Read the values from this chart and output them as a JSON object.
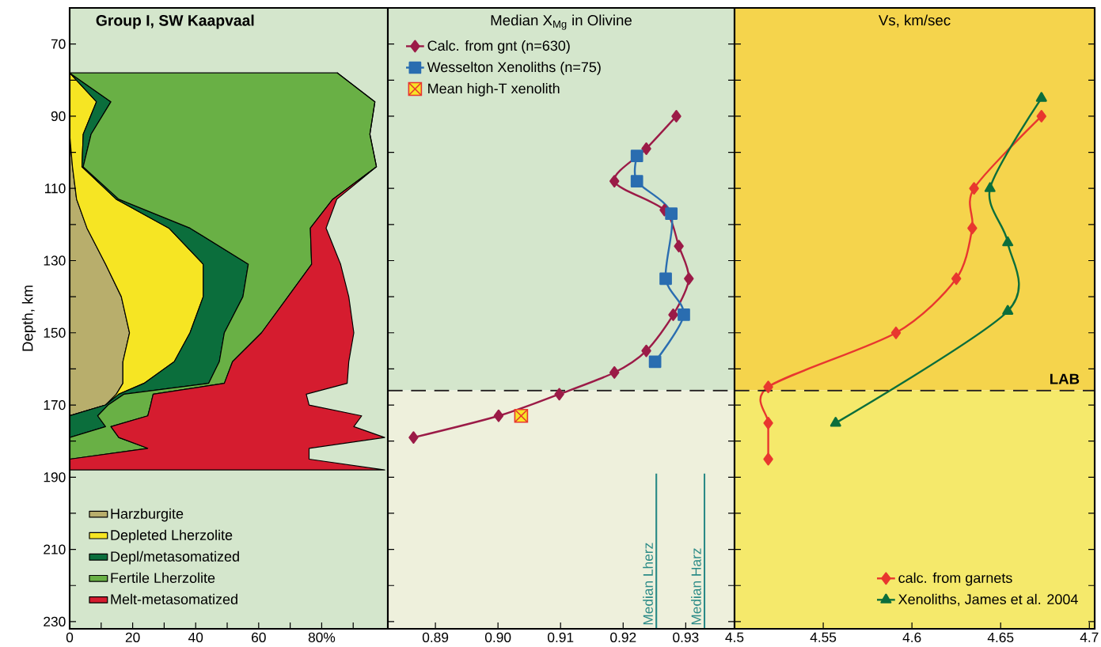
{
  "chart_data": [
    {
      "type": "area",
      "title": "Group I, SW Kaapvaal",
      "ylabel": "Depth, km",
      "orientation": "horizontal",
      "stacked": true,
      "legend": "bottom left",
      "x": [
        78,
        86,
        95,
        104,
        113,
        121,
        131,
        140,
        150,
        158,
        164,
        167,
        170,
        173,
        176,
        179,
        182,
        185,
        188
      ],
      "series": [
        {
          "name": "Harzburgite",
          "color": "#b8ae6c",
          "values": [
            0,
            0,
            0,
            0.9,
            2.2,
            5.5,
            11.4,
            16.4,
            19,
            16.9,
            16.9,
            14.8,
            11.4,
            0,
            0,
            0,
            0,
            0,
            0
          ]
        },
        {
          "name": "Depleted Lherzolite",
          "color": "#f6e523",
          "values": [
            0,
            8.5,
            4.3,
            3.0,
            12.6,
            26,
            31,
            26,
            19.2,
            16.3,
            6.7,
            0.8,
            0,
            0,
            0,
            0,
            0,
            0,
            0
          ]
        },
        {
          "name": "Depl/metasomatized",
          "color": "#0b6e3c",
          "values": [
            0,
            4.6,
            2.5,
            0.4,
            0.8,
            6.7,
            14.3,
            12.6,
            10.9,
            14.3,
            20.5,
            1.7,
            0.8,
            8.9,
            11.4,
            0,
            0,
            0,
            0
          ]
        },
        {
          "name": "Fertile Lherzolite",
          "color": "#69b045",
          "values": [
            85,
            83.8,
            88.5,
            93.1,
            67.9,
            38.2,
            20.1,
            14.3,
            11.8,
            4.2,
            5.0,
            9.2,
            13.5,
            15.9,
            1.7,
            15.6,
            24.8,
            0,
            0
          ]
        },
        {
          "name": "Melt-metasomatized",
          "color": "#d51c2f",
          "values": [
            0,
            0,
            0,
            0,
            1.3,
            5,
            9.2,
            19.3,
            29.3,
            36.9,
            39,
            48.6,
            50.3,
            67.9,
            77.1,
            84.4,
            51.2,
            76,
            100
          ]
        }
      ],
      "xlim": [
        0,
        101
      ],
      "ylim": [
        232,
        60
      ],
      "xticks": [
        0,
        {
          "value": 10,
          "label": null
        },
        20,
        {
          "value": 30,
          "label": null
        },
        40,
        {
          "value": 50,
          "label": null
        },
        60,
        {
          "value": 70,
          "label": null
        },
        {
          "value": 80,
          "label": "80%"
        },
        {
          "value": 90,
          "label": null
        }
      ],
      "yticks": [
        70,
        {
          "value": 80,
          "label": null
        },
        90,
        {
          "value": 100,
          "label": null
        },
        110,
        {
          "value": 120,
          "label": null
        },
        130,
        {
          "value": 140,
          "label": null
        },
        150,
        {
          "value": 160,
          "label": null
        },
        170,
        {
          "value": 180,
          "label": null
        },
        190,
        {
          "value": 200,
          "label": null
        },
        210,
        {
          "value": 220,
          "label": null
        },
        230
      ],
      "bands": [
        {
          "axis": "y",
          "from": 60,
          "to": 232,
          "color": "#d4e6cc"
        }
      ]
    },
    {
      "type": "line",
      "title": "Median X$_{Mg}$ in Olivine",
      "legend": "top left",
      "tick_labels": "x",
      "series": [
        {
          "name": "Calc. from gnt (n=630)",
          "color": "#9b1b47",
          "marker": "diamond",
          "x": [
            0.9285,
            0.9237,
            0.9186,
            0.9266,
            0.9289,
            0.9305,
            0.928,
            0.9237,
            0.9186,
            0.9098,
            0.9001,
            0.8865
          ],
          "values": [
            90,
            99,
            108,
            116,
            126,
            135,
            145,
            155,
            161,
            167,
            173,
            179
          ]
        },
        {
          "name": "Wesselton Xenoliths (n=75)",
          "color": "#2a6db0",
          "marker": "square",
          "x": [
            0.9222,
            0.9222,
            0.9277,
            0.9268,
            0.9297,
            0.9251
          ],
          "values": [
            101,
            108,
            117,
            135,
            145,
            158
          ]
        },
        {
          "name": "Mean high-T xenolith",
          "type": "scatter",
          "color": "#e8372f",
          "marker": "square",
          "x": [
            0.9037
          ],
          "values": [
            173
          ]
        },
        {
          "name": "Median Lherz",
          "color": "#2a8a86",
          "marker": "none",
          "x": [
            0.9253,
            0.9253
          ],
          "values": [
            189,
            232
          ]
        },
        {
          "name": "Median Harz",
          "color": "#2a8a86",
          "marker": "none",
          "x": [
            0.933,
            0.933
          ],
          "values": [
            189,
            232
          ]
        }
      ],
      "xlim": [
        0.8824,
        0.9378
      ],
      "ylim": [
        232,
        60
      ],
      "xticks": [
        0.89,
        {
          "value": 0.9,
          "label": "0.90"
        },
        0.91,
        0.92,
        0.93
      ],
      "yticks": [
        {
          "value": 70,
          "label": null
        },
        {
          "value": 80,
          "label": null
        },
        {
          "value": 90,
          "label": null
        },
        {
          "value": 100,
          "label": null
        },
        {
          "value": 110,
          "label": null
        },
        {
          "value": 120,
          "label": null
        },
        {
          "value": 130,
          "label": null
        },
        {
          "value": 140,
          "label": null
        },
        {
          "value": 150,
          "label": null
        },
        {
          "value": 160,
          "label": null
        },
        {
          "value": 170,
          "label": null
        },
        {
          "value": 180,
          "label": null
        },
        {
          "value": 190,
          "label": null
        },
        {
          "value": 200,
          "label": null
        },
        {
          "value": 210,
          "label": null
        },
        {
          "value": 220,
          "label": null
        },
        {
          "value": 230,
          "label": null
        }
      ],
      "ref_lines": [
        {
          "axis": "y",
          "value": 166,
          "color": "#231f20",
          "line_style": "dashed"
        }
      ],
      "bands": [
        {
          "axis": "y",
          "from": 60,
          "to": 166,
          "color": "#d4e6cc"
        },
        {
          "axis": "y",
          "from": 166,
          "to": 232,
          "color": "#eef0dc"
        }
      ]
    },
    {
      "type": "line",
      "title": "Vs, km/sec",
      "legend": "bottom right",
      "tick_labels": "x",
      "series": [
        {
          "name": "calc. from garnets",
          "color": "#e8372f",
          "marker": "diamond",
          "x": [
            4.673,
            4.635,
            4.634,
            4.625,
            4.591,
            4.519,
            4.519,
            4.519
          ],
          "values": [
            90,
            110,
            121,
            135,
            150,
            165,
            175,
            185
          ]
        },
        {
          "name": "Xenoliths, James et al. 2004",
          "color": "#0b6e3c",
          "marker": "triangle",
          "x": [
            4.673,
            4.644,
            4.654,
            4.654,
            4.557
          ],
          "values": [
            85,
            110,
            125,
            144,
            175
          ]
        }
      ],
      "xlim": [
        4.5,
        4.703
      ],
      "ylim": [
        232,
        60
      ],
      "xticks": [
        4.5,
        4.55,
        4.6,
        4.65,
        4.7
      ],
      "yticks": [
        {
          "value": 70,
          "label": null
        },
        {
          "value": 80,
          "label": null
        },
        {
          "value": 90,
          "label": null
        },
        {
          "value": 100,
          "label": null
        },
        {
          "value": 110,
          "label": null
        },
        {
          "value": 120,
          "label": null
        },
        {
          "value": 130,
          "label": null
        },
        {
          "value": 140,
          "label": null
        },
        {
          "value": 150,
          "label": null
        },
        {
          "value": 160,
          "label": null
        },
        {
          "value": 170,
          "label": null
        },
        {
          "value": 180,
          "label": null
        },
        {
          "value": 190,
          "label": null
        },
        {
          "value": 200,
          "label": null
        },
        {
          "value": 210,
          "label": null
        },
        {
          "value": 220,
          "label": null
        },
        {
          "value": 230,
          "label": null
        }
      ],
      "ref_lines": [
        {
          "axis": "y",
          "value": 166,
          "label": "LAB",
          "color": "#231f20",
          "line_style": "dashed"
        }
      ],
      "bands": [
        {
          "axis": "y",
          "from": 60,
          "to": 166,
          "color": "#f5d44c"
        },
        {
          "axis": "y",
          "from": 166,
          "to": 232,
          "color": "#f5e96b"
        }
      ]
    }
  ]
}
